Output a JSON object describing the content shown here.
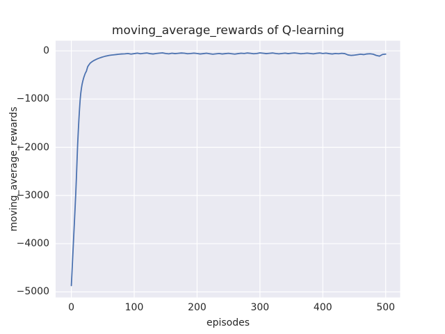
{
  "chart_data": {
    "type": "line",
    "title": "moving_average_rewards of Q-learning",
    "xlabel": "episodes",
    "ylabel": "moving_average_rewards",
    "xlim": [
      -25,
      523
    ],
    "ylim": [
      -5116,
      210
    ],
    "xticks": [
      0,
      100,
      200,
      300,
      400,
      500
    ],
    "xticklabels": [
      "0",
      "100",
      "200",
      "300",
      "400",
      "500"
    ],
    "yticks": [
      0,
      -1000,
      -2000,
      -3000,
      -4000,
      -5000
    ],
    "yticklabels": [
      "0",
      "−1000",
      "−2000",
      "−3000",
      "−4000",
      "−5000"
    ],
    "grid": true,
    "legend": "none",
    "style": {
      "line_color": "#4C72B0",
      "plot_background": "#EAEAF2",
      "grid_color": "#FFFFFF",
      "figure_background": "#FFFFFF",
      "text_color": "#262626"
    },
    "series": [
      {
        "name": "moving_average_rewards",
        "x": [
          0,
          1,
          2,
          3,
          4,
          5,
          6,
          7,
          8,
          9,
          10,
          11,
          12,
          13,
          14,
          15,
          16,
          17,
          18,
          19,
          20,
          22,
          24,
          26,
          28,
          30,
          33,
          36,
          39,
          42,
          45,
          48,
          51,
          54,
          57,
          60,
          64,
          68,
          72,
          76,
          80,
          85,
          90,
          95,
          100,
          105,
          110,
          115,
          120,
          125,
          130,
          135,
          140,
          145,
          150,
          155,
          160,
          165,
          170,
          175,
          180,
          185,
          190,
          195,
          200,
          205,
          210,
          215,
          220,
          225,
          230,
          235,
          240,
          245,
          250,
          255,
          260,
          265,
          270,
          275,
          280,
          285,
          290,
          295,
          300,
          305,
          310,
          315,
          320,
          325,
          330,
          335,
          340,
          345,
          350,
          355,
          360,
          365,
          370,
          375,
          380,
          385,
          390,
          395,
          400,
          405,
          410,
          415,
          420,
          425,
          430,
          435,
          440,
          445,
          450,
          455,
          460,
          465,
          470,
          475,
          480,
          485,
          490,
          495,
          500
        ],
        "y": [
          -4870,
          -4600,
          -4330,
          -4060,
          -3790,
          -3520,
          -3250,
          -2970,
          -2650,
          -2300,
          -1950,
          -1680,
          -1430,
          -1210,
          -1020,
          -880,
          -780,
          -700,
          -640,
          -590,
          -545,
          -470,
          -420,
          -330,
          -290,
          -255,
          -225,
          -200,
          -180,
          -163,
          -148,
          -135,
          -123,
          -112,
          -103,
          -95,
          -88,
          -82,
          -76,
          -70,
          -65,
          -62,
          -55,
          -68,
          -58,
          -48,
          -60,
          -52,
          -45,
          -58,
          -65,
          -55,
          -48,
          -42,
          -55,
          -62,
          -50,
          -58,
          -52,
          -45,
          -50,
          -60,
          -55,
          -48,
          -55,
          -65,
          -58,
          -50,
          -60,
          -70,
          -62,
          -55,
          -65,
          -58,
          -52,
          -60,
          -68,
          -58,
          -50,
          -55,
          -45,
          -52,
          -60,
          -55,
          -42,
          -50,
          -58,
          -52,
          -45,
          -55,
          -62,
          -55,
          -48,
          -58,
          -50,
          -44,
          -52,
          -60,
          -55,
          -48,
          -55,
          -62,
          -52,
          -45,
          -55,
          -48,
          -58,
          -65,
          -55,
          -60,
          -52,
          -58,
          -85,
          -95,
          -90,
          -80,
          -70,
          -78,
          -65,
          -60,
          -70,
          -95,
          -110,
          -75,
          -68
        ]
      }
    ]
  }
}
